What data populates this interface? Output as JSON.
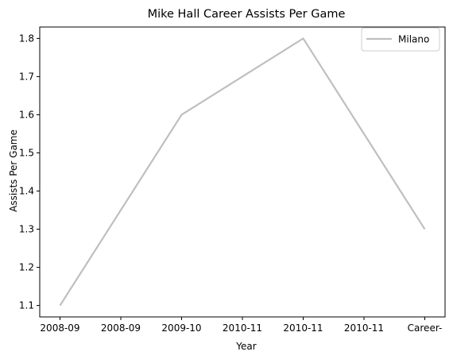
{
  "chart_data": {
    "type": "line",
    "title": "Mike Hall  Career Assists Per Game",
    "xlabel": "Year",
    "ylabel": "Assists Per Game",
    "x_tick_labels": [
      "2008-09",
      "2008-09",
      "2009-10",
      "2010-11",
      "2010-11",
      "2010-11",
      "Career-"
    ],
    "x": [
      "2008-09",
      "2009-10",
      "2010-11",
      "Career-"
    ],
    "series": [
      {
        "name": "Milano",
        "color": "#bfbfbf",
        "values": [
          1.1,
          1.6,
          1.8,
          1.3
        ]
      }
    ],
    "ylim": [
      1.07,
      1.83
    ],
    "yticks": [
      1.1,
      1.2,
      1.3,
      1.4,
      1.5,
      1.6,
      1.7,
      1.8
    ],
    "grid": false,
    "legend": "top-right"
  }
}
